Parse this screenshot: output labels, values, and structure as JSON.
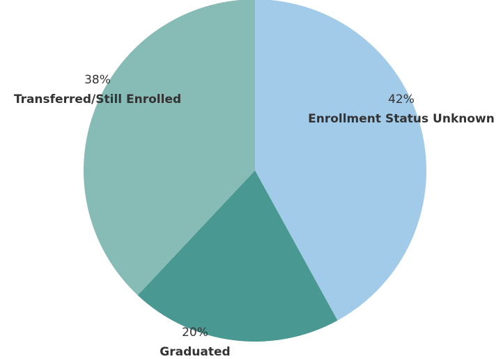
{
  "chart_data": {
    "type": "pie",
    "categories": [
      "Enrollment Status Unknown",
      "Graduated",
      "Transferred/Still Enrolled"
    ],
    "values": [
      42,
      20,
      38
    ],
    "value_labels": [
      "42%",
      "20%",
      "38%"
    ],
    "colors": [
      "#a2cae9",
      "#4a9892",
      "#87bbb5"
    ]
  }
}
